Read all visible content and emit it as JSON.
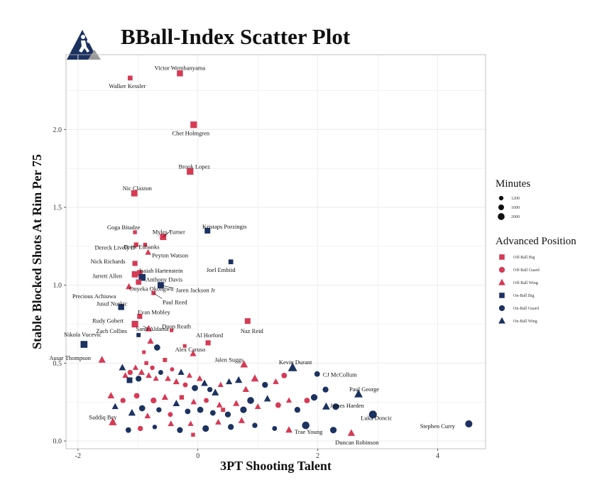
{
  "header": {
    "title": "BBall-Index Scatter Plot"
  },
  "colors": {
    "off_ball": "#d63a54",
    "on_ball": "#1c3260",
    "grid": "#ebebeb",
    "panel_border": "#b3b3b3"
  },
  "chart_data": {
    "type": "scatter",
    "title": "BBall-Index Scatter Plot",
    "xlabel": "3PT Shooting Talent",
    "ylabel": "Stable Blocked Shots At Rim Per 75",
    "xlim": [
      -2.2,
      4.8
    ],
    "ylim": [
      -0.05,
      2.48
    ],
    "xticks": [
      -2,
      0,
      2,
      4
    ],
    "yticks": [
      0.0,
      0.5,
      1.0,
      1.5,
      2.0
    ],
    "grid": true,
    "legend": {
      "position": "right",
      "minutes": {
        "title": "Minutes",
        "entries": [
          {
            "label": "1200",
            "size": 3.0
          },
          {
            "label": "1600",
            "size": 3.8
          },
          {
            "label": "2000",
            "size": 4.6
          }
        ]
      },
      "position_key": {
        "title": "Advanced Position",
        "entries": [
          {
            "label": "Off-Ball   Big",
            "group": "off",
            "shape": "square"
          },
          {
            "label": "Off-Ball   Guard",
            "group": "off",
            "shape": "circle"
          },
          {
            "label": "Off-Ball   Wing",
            "group": "off",
            "shape": "triangle"
          },
          {
            "label": "On-Ball   Big",
            "group": "on",
            "shape": "square"
          },
          {
            "label": "On-Ball   Guard",
            "group": "on",
            "shape": "circle"
          },
          {
            "label": "On-Ball   Wing",
            "group": "on",
            "shape": "triangle"
          }
        ]
      }
    },
    "labeled_points": [
      {
        "name": "Victor Wembanyama",
        "x": -0.3,
        "y": 2.36,
        "g": "off",
        "s": "square",
        "sz": 4.0
      },
      {
        "name": "Walker Kessler",
        "x": -1.13,
        "y": 2.33,
        "g": "off",
        "s": "square",
        "sz": 3.2
      },
      {
        "name": "Chet Holmgren",
        "x": -0.07,
        "y": 2.03,
        "g": "off",
        "s": "square",
        "sz": 4.4
      },
      {
        "name": "Brook Lopez",
        "x": -0.13,
        "y": 1.73,
        "g": "off",
        "s": "square",
        "sz": 4.4
      },
      {
        "name": "Nic Claxton",
        "x": -1.06,
        "y": 1.59,
        "g": "off",
        "s": "square",
        "sz": 4.2
      },
      {
        "name": "Kristaps Porzingis",
        "x": 0.16,
        "y": 1.35,
        "g": "on",
        "s": "square",
        "sz": 3.8
      },
      {
        "name": "Goga Bitadze",
        "x": -1.05,
        "y": 1.34,
        "g": "off",
        "s": "square",
        "sz": 2.6
      },
      {
        "name": "Myles Turner",
        "x": -0.58,
        "y": 1.31,
        "g": "off",
        "s": "square",
        "sz": 4.2
      },
      {
        "name": "Drew Eubanks",
        "x": -0.88,
        "y": 1.26,
        "g": "off",
        "s": "square",
        "sz": 2.6
      },
      {
        "name": "Dereck Lively II",
        "x": -1.03,
        "y": 1.26,
        "g": "off",
        "s": "square",
        "sz": 3.0
      },
      {
        "name": "Peyton Watson",
        "x": -0.83,
        "y": 1.21,
        "g": "off",
        "s": "triangle",
        "sz": 3.2
      },
      {
        "name": "Nick Richards",
        "x": -1.05,
        "y": 1.14,
        "g": "off",
        "s": "square",
        "sz": 3.4
      },
      {
        "name": "Joel Embiid",
        "x": 0.55,
        "y": 1.15,
        "g": "on",
        "s": "square",
        "sz": 3.2
      },
      {
        "name": "Isaiah Hartenstein",
        "x": -0.97,
        "y": 1.08,
        "g": "off",
        "s": "square",
        "sz": 3.6
      },
      {
        "name": "Jarrett Allen",
        "x": -1.05,
        "y": 1.07,
        "g": "off",
        "s": "square",
        "sz": 4.2
      },
      {
        "name": "Anthony Davis",
        "x": -0.93,
        "y": 1.05,
        "g": "on",
        "s": "square",
        "sz": 4.6
      },
      {
        "name": "Jaren Jackson Jr",
        "x": -0.62,
        "y": 1.0,
        "g": "on",
        "s": "square",
        "sz": 4.2
      },
      {
        "name": "Onyeka Okongwu",
        "x": -0.99,
        "y": 1.02,
        "g": "off",
        "s": "square",
        "sz": 3.6
      },
      {
        "name": "Precious Achiuwa",
        "x": -1.15,
        "y": 0.99,
        "g": "off",
        "s": "triangle",
        "sz": 3.4
      },
      {
        "name": "Paul Reed",
        "x": -0.74,
        "y": 0.95,
        "g": "off",
        "s": "square",
        "sz": 2.8
      },
      {
        "name": "Jusuf Nurkic",
        "x": -1.28,
        "y": 0.86,
        "g": "on",
        "s": "square",
        "sz": 4.0
      },
      {
        "name": "Evan Mobley",
        "x": -0.97,
        "y": 0.8,
        "g": "off",
        "s": "square",
        "sz": 3.4
      },
      {
        "name": "Naz Reid",
        "x": 0.83,
        "y": 0.77,
        "g": "off",
        "s": "square",
        "sz": 3.8
      },
      {
        "name": "Rudy Gobert",
        "x": -1.05,
        "y": 0.75,
        "g": "off",
        "s": "square",
        "sz": 4.4
      },
      {
        "name": "Santi Aldama",
        "x": -0.82,
        "y": 0.72,
        "g": "off",
        "s": "triangle",
        "sz": 3.6
      },
      {
        "name": "Zach Collins",
        "x": -0.99,
        "y": 0.68,
        "g": "on",
        "s": "square",
        "sz": 2.8
      },
      {
        "name": "Duop Reath",
        "x": -0.44,
        "y": 0.71,
        "g": "off",
        "s": "square",
        "sz": 2.4
      },
      {
        "name": "Al Horford",
        "x": 0.17,
        "y": 0.63,
        "g": "off",
        "s": "square",
        "sz": 3.4
      },
      {
        "name": "Nikola Vucevic",
        "x": -1.9,
        "y": 0.62,
        "g": "on",
        "s": "square",
        "sz": 4.6
      },
      {
        "name": "Alex Caruso",
        "x": -0.08,
        "y": 0.56,
        "g": "off",
        "s": "triangle",
        "sz": 3.4
      },
      {
        "name": "Ausar Thompson",
        "x": -1.6,
        "y": 0.52,
        "g": "off",
        "s": "triangle",
        "sz": 3.8
      },
      {
        "name": "Jalen Suggs",
        "x": 0.77,
        "y": 0.49,
        "g": "off",
        "s": "triangle",
        "sz": 4.0
      },
      {
        "name": "Kevin Durant",
        "x": 1.58,
        "y": 0.47,
        "g": "on",
        "s": "triangle",
        "sz": 4.8
      },
      {
        "name": "CJ McCollum",
        "x": 1.99,
        "y": 0.43,
        "g": "on",
        "s": "circle",
        "sz": 3.4
      },
      {
        "name": "Paul George",
        "x": 2.68,
        "y": 0.3,
        "g": "on",
        "s": "triangle",
        "sz": 4.4
      },
      {
        "name": "James Harden",
        "x": 2.3,
        "y": 0.22,
        "g": "on",
        "s": "circle",
        "sz": 4.0
      },
      {
        "name": "Saddiq Bey",
        "x": -1.42,
        "y": 0.12,
        "g": "off",
        "s": "triangle",
        "sz": 4.2
      },
      {
        "name": "Luka Doncic",
        "x": 2.92,
        "y": 0.17,
        "g": "on",
        "s": "circle",
        "sz": 4.8
      },
      {
        "name": "Stephen Curry",
        "x": 4.52,
        "y": 0.11,
        "g": "on",
        "s": "circle",
        "sz": 4.4
      },
      {
        "name": "Trae Young",
        "x": 1.8,
        "y": 0.1,
        "g": "on",
        "s": "circle",
        "sz": 4.6
      },
      {
        "name": "Duncan Robinson",
        "x": 2.56,
        "y": 0.05,
        "g": "off",
        "s": "triangle",
        "sz": 3.8
      }
    ],
    "points": [
      {
        "x": -1.26,
        "y": 0.47,
        "g": "on",
        "s": "triangle",
        "sz": 3.6
      },
      {
        "x": -1.21,
        "y": 0.42,
        "g": "off",
        "s": "triangle",
        "sz": 3.2
      },
      {
        "x": -1.13,
        "y": 0.44,
        "g": "off",
        "s": "circle",
        "sz": 3.2
      },
      {
        "x": -1.14,
        "y": 0.39,
        "g": "on",
        "s": "square",
        "sz": 3.8
      },
      {
        "x": -1.04,
        "y": 0.47,
        "g": "off",
        "s": "triangle",
        "sz": 3.0
      },
      {
        "x": -0.99,
        "y": 0.4,
        "g": "on",
        "s": "circle",
        "sz": 3.6
      },
      {
        "x": -0.94,
        "y": 0.44,
        "g": "off",
        "s": "triangle",
        "sz": 3.4
      },
      {
        "x": -0.86,
        "y": 0.5,
        "g": "off",
        "s": "square",
        "sz": 2.6
      },
      {
        "x": -0.82,
        "y": 0.42,
        "g": "off",
        "s": "triangle",
        "sz": 3.2
      },
      {
        "x": -0.76,
        "y": 0.47,
        "g": "off",
        "s": "circle",
        "sz": 2.8
      },
      {
        "x": -0.7,
        "y": 0.4,
        "g": "off",
        "s": "triangle",
        "sz": 3.0
      },
      {
        "x": -0.62,
        "y": 0.44,
        "g": "on",
        "s": "circle",
        "sz": 3.0
      },
      {
        "x": -0.55,
        "y": 0.52,
        "g": "off",
        "s": "square",
        "sz": 2.8
      },
      {
        "x": -0.5,
        "y": 0.4,
        "g": "off",
        "s": "triangle",
        "sz": 3.2
      },
      {
        "x": -0.43,
        "y": 0.46,
        "g": "off",
        "s": "circle",
        "sz": 2.6
      },
      {
        "x": -0.36,
        "y": 0.38,
        "g": "off",
        "s": "triangle",
        "sz": 3.4
      },
      {
        "x": -0.28,
        "y": 0.44,
        "g": "on",
        "s": "triangle",
        "sz": 3.4
      },
      {
        "x": -0.21,
        "y": 0.36,
        "g": "off",
        "s": "circle",
        "sz": 3.0
      },
      {
        "x": -0.14,
        "y": 0.42,
        "g": "off",
        "s": "triangle",
        "sz": 3.0
      },
      {
        "x": -0.05,
        "y": 0.34,
        "g": "on",
        "s": "circle",
        "sz": 3.8
      },
      {
        "x": 0.03,
        "y": 0.4,
        "g": "off",
        "s": "triangle",
        "sz": 3.2
      },
      {
        "x": 0.11,
        "y": 0.37,
        "g": "on",
        "s": "triangle",
        "sz": 3.6
      },
      {
        "x": 0.2,
        "y": 0.33,
        "g": "on",
        "s": "circle",
        "sz": 3.2
      },
      {
        "x": 0.29,
        "y": 0.31,
        "g": "on",
        "s": "triangle",
        "sz": 3.8
      },
      {
        "x": 0.38,
        "y": 0.36,
        "g": "off",
        "s": "triangle",
        "sz": 3.0
      },
      {
        "x": 0.52,
        "y": 0.38,
        "g": "on",
        "s": "triangle",
        "sz": 3.4
      },
      {
        "x": 0.68,
        "y": 0.39,
        "g": "on",
        "s": "triangle",
        "sz": 3.8
      },
      {
        "x": 0.8,
        "y": 0.33,
        "g": "off",
        "s": "triangle",
        "sz": 3.4
      },
      {
        "x": 0.95,
        "y": 0.4,
        "g": "off",
        "s": "triangle",
        "sz": 4.0
      },
      {
        "x": 1.12,
        "y": 0.36,
        "g": "on",
        "s": "circle",
        "sz": 3.6
      },
      {
        "x": 1.3,
        "y": 0.38,
        "g": "off",
        "s": "triangle",
        "sz": 3.2
      },
      {
        "x": 1.44,
        "y": 0.42,
        "g": "off",
        "s": "circle",
        "sz": 3.4
      },
      {
        "x": -1.45,
        "y": 0.29,
        "g": "off",
        "s": "triangle",
        "sz": 3.6
      },
      {
        "x": -1.38,
        "y": 0.22,
        "g": "on",
        "s": "triangle",
        "sz": 3.4
      },
      {
        "x": -1.25,
        "y": 0.26,
        "g": "off",
        "s": "circle",
        "sz": 3.2
      },
      {
        "x": -1.1,
        "y": 0.18,
        "g": "on",
        "s": "triangle",
        "sz": 3.8
      },
      {
        "x": -1.02,
        "y": 0.29,
        "g": "off",
        "s": "circle",
        "sz": 3.4
      },
      {
        "x": -0.93,
        "y": 0.21,
        "g": "on",
        "s": "circle",
        "sz": 3.8
      },
      {
        "x": -0.84,
        "y": 0.16,
        "g": "off",
        "s": "triangle",
        "sz": 3.2
      },
      {
        "x": -0.74,
        "y": 0.26,
        "g": "off",
        "s": "circle",
        "sz": 3.6
      },
      {
        "x": -0.65,
        "y": 0.2,
        "g": "on",
        "s": "circle",
        "sz": 3.2
      },
      {
        "x": -0.55,
        "y": 0.28,
        "g": "off",
        "s": "triangle",
        "sz": 3.4
      },
      {
        "x": -0.46,
        "y": 0.17,
        "g": "off",
        "s": "circle",
        "sz": 3.0
      },
      {
        "x": -0.36,
        "y": 0.24,
        "g": "on",
        "s": "triangle",
        "sz": 3.6
      },
      {
        "x": -0.27,
        "y": 0.28,
        "g": "off",
        "s": "square",
        "sz": 3.0
      },
      {
        "x": -0.17,
        "y": 0.19,
        "g": "on",
        "s": "circle",
        "sz": 3.4
      },
      {
        "x": -0.07,
        "y": 0.25,
        "g": "off",
        "s": "triangle",
        "sz": 3.2
      },
      {
        "x": 0.04,
        "y": 0.2,
        "g": "on",
        "s": "circle",
        "sz": 3.8
      },
      {
        "x": 0.14,
        "y": 0.26,
        "g": "off",
        "s": "circle",
        "sz": 3.0
      },
      {
        "x": 0.25,
        "y": 0.18,
        "g": "on",
        "s": "circle",
        "sz": 3.4
      },
      {
        "x": 0.36,
        "y": 0.23,
        "g": "off",
        "s": "triangle",
        "sz": 3.2
      },
      {
        "x": 0.5,
        "y": 0.17,
        "g": "on",
        "s": "circle",
        "sz": 3.6
      },
      {
        "x": 0.64,
        "y": 0.24,
        "g": "off",
        "s": "triangle",
        "sz": 3.4
      },
      {
        "x": 0.76,
        "y": 0.2,
        "g": "on",
        "s": "circle",
        "sz": 4.0
      },
      {
        "x": 0.88,
        "y": 0.26,
        "g": "on",
        "s": "circle",
        "sz": 4.2
      },
      {
        "x": 1.0,
        "y": 0.22,
        "g": "off",
        "s": "triangle",
        "sz": 3.2
      },
      {
        "x": 1.16,
        "y": 0.27,
        "g": "on",
        "s": "triangle",
        "sz": 3.6
      },
      {
        "x": 1.34,
        "y": 0.23,
        "g": "off",
        "s": "circle",
        "sz": 3.4
      },
      {
        "x": 1.52,
        "y": 0.26,
        "g": "off",
        "s": "triangle",
        "sz": 3.0
      },
      {
        "x": 1.66,
        "y": 0.2,
        "g": "on",
        "s": "circle",
        "sz": 3.6
      },
      {
        "x": 1.82,
        "y": 0.26,
        "g": "off",
        "s": "circle",
        "sz": 3.4
      },
      {
        "x": 1.94,
        "y": 0.28,
        "g": "on",
        "s": "circle",
        "sz": 4.0
      },
      {
        "x": 2.13,
        "y": 0.33,
        "g": "on",
        "s": "circle",
        "sz": 3.6
      },
      {
        "x": 2.14,
        "y": 0.22,
        "g": "on",
        "s": "triangle",
        "sz": 4.0
      },
      {
        "x": -1.16,
        "y": 0.07,
        "g": "on",
        "s": "circle",
        "sz": 3.4
      },
      {
        "x": -0.96,
        "y": 0.08,
        "g": "off",
        "s": "circle",
        "sz": 3.2
      },
      {
        "x": -0.72,
        "y": 0.09,
        "g": "on",
        "s": "circle",
        "sz": 2.8
      },
      {
        "x": -0.45,
        "y": 0.11,
        "g": "off",
        "s": "triangle",
        "sz": 3.2
      },
      {
        "x": -0.3,
        "y": 0.07,
        "g": "on",
        "s": "circle",
        "sz": 3.6
      },
      {
        "x": -0.12,
        "y": 0.11,
        "g": "off",
        "s": "triangle",
        "sz": 3.0
      },
      {
        "x": 0.13,
        "y": 0.08,
        "g": "on",
        "s": "circle",
        "sz": 4.0
      },
      {
        "x": 0.34,
        "y": 0.12,
        "g": "off",
        "s": "triangle",
        "sz": 3.2
      },
      {
        "x": 0.55,
        "y": 0.09,
        "g": "on",
        "s": "circle",
        "sz": 3.6
      },
      {
        "x": 0.73,
        "y": 0.13,
        "g": "off",
        "s": "triangle",
        "sz": 3.4
      },
      {
        "x": 0.95,
        "y": 0.1,
        "g": "on",
        "s": "circle",
        "sz": 3.2
      },
      {
        "x": 1.28,
        "y": 0.08,
        "g": "on",
        "s": "circle",
        "sz": 3.0
      },
      {
        "x": 1.52,
        "y": 0.07,
        "g": "off",
        "s": "triangle",
        "sz": 3.6
      },
      {
        "x": 2.26,
        "y": 0.07,
        "g": "on",
        "s": "circle",
        "sz": 4.0
      },
      {
        "x": -0.08,
        "y": 0.04,
        "g": "off",
        "s": "square",
        "sz": 2.6
      },
      {
        "x": 0.42,
        "y": 0.2,
        "g": "off",
        "s": "square",
        "sz": 2.8
      },
      {
        "x": -0.68,
        "y": 0.6,
        "g": "on",
        "s": "circle",
        "sz": 3.8
      },
      {
        "x": -0.79,
        "y": 0.64,
        "g": "off",
        "s": "triangle",
        "sz": 3.4
      },
      {
        "x": -0.22,
        "y": 0.61,
        "g": "off",
        "s": "square",
        "sz": 2.4
      },
      {
        "x": -0.9,
        "y": 0.57,
        "g": "off",
        "s": "square",
        "sz": 2.4
      }
    ]
  }
}
